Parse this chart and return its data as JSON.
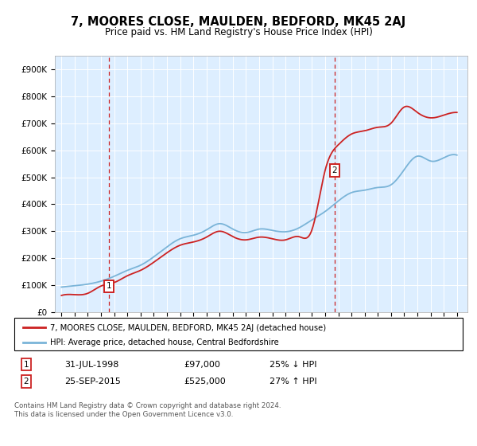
{
  "title": "7, MOORES CLOSE, MAULDEN, BEDFORD, MK45 2AJ",
  "subtitle": "Price paid vs. HM Land Registry's House Price Index (HPI)",
  "legend_line1": "7, MOORES CLOSE, MAULDEN, BEDFORD, MK45 2AJ (detached house)",
  "legend_line2": "HPI: Average price, detached house, Central Bedfordshire",
  "annotation_text": "Contains HM Land Registry data © Crown copyright and database right 2024.\nThis data is licensed under the Open Government Licence v3.0.",
  "purchase1_date": 1998.58,
  "purchase1_price": 97000,
  "purchase2_date": 2015.73,
  "purchase2_price": 525000,
  "hpi_color": "#7ab4d8",
  "price_color": "#cc2222",
  "background_color": "#ddeeff",
  "grid_color": "white",
  "ylim_max": 950000,
  "xlim_start": 1994.5,
  "xlim_end": 2025.8,
  "hpi_years": [
    1995,
    1996,
    1997,
    1998,
    1999,
    2000,
    2001,
    2002,
    2003,
    2004,
    2005,
    2006,
    2007,
    2008,
    2009,
    2010,
    2011,
    2012,
    2013,
    2014,
    2015,
    2016,
    2017,
    2018,
    2019,
    2020,
    2021,
    2022,
    2023,
    2024,
    2025
  ],
  "hpi_values": [
    93000,
    98000,
    104000,
    115000,
    133000,
    155000,
    174000,
    205000,
    242000,
    272000,
    285000,
    305000,
    328000,
    308000,
    295000,
    308000,
    303000,
    298000,
    312000,
    342000,
    373000,
    412000,
    443000,
    452000,
    462000,
    472000,
    528000,
    578000,
    560000,
    572000,
    582000
  ],
  "red_years": [
    1995,
    1996,
    1997,
    1998,
    1999,
    2000,
    2001,
    2002,
    2003,
    2004,
    2005,
    2006,
    2007,
    2008,
    2009,
    2010,
    2011,
    2012,
    2013,
    2014,
    2015,
    2016,
    2017,
    2018,
    2019,
    2020,
    2021,
    2022,
    2023,
    2024,
    2025
  ],
  "red_values": [
    62000,
    65000,
    70000,
    97000,
    110000,
    135000,
    155000,
    185000,
    220000,
    248000,
    260000,
    278000,
    300000,
    280000,
    268000,
    278000,
    272000,
    268000,
    280000,
    305000,
    525000,
    620000,
    660000,
    672000,
    685000,
    700000,
    760000,
    740000,
    720000,
    730000,
    740000
  ]
}
